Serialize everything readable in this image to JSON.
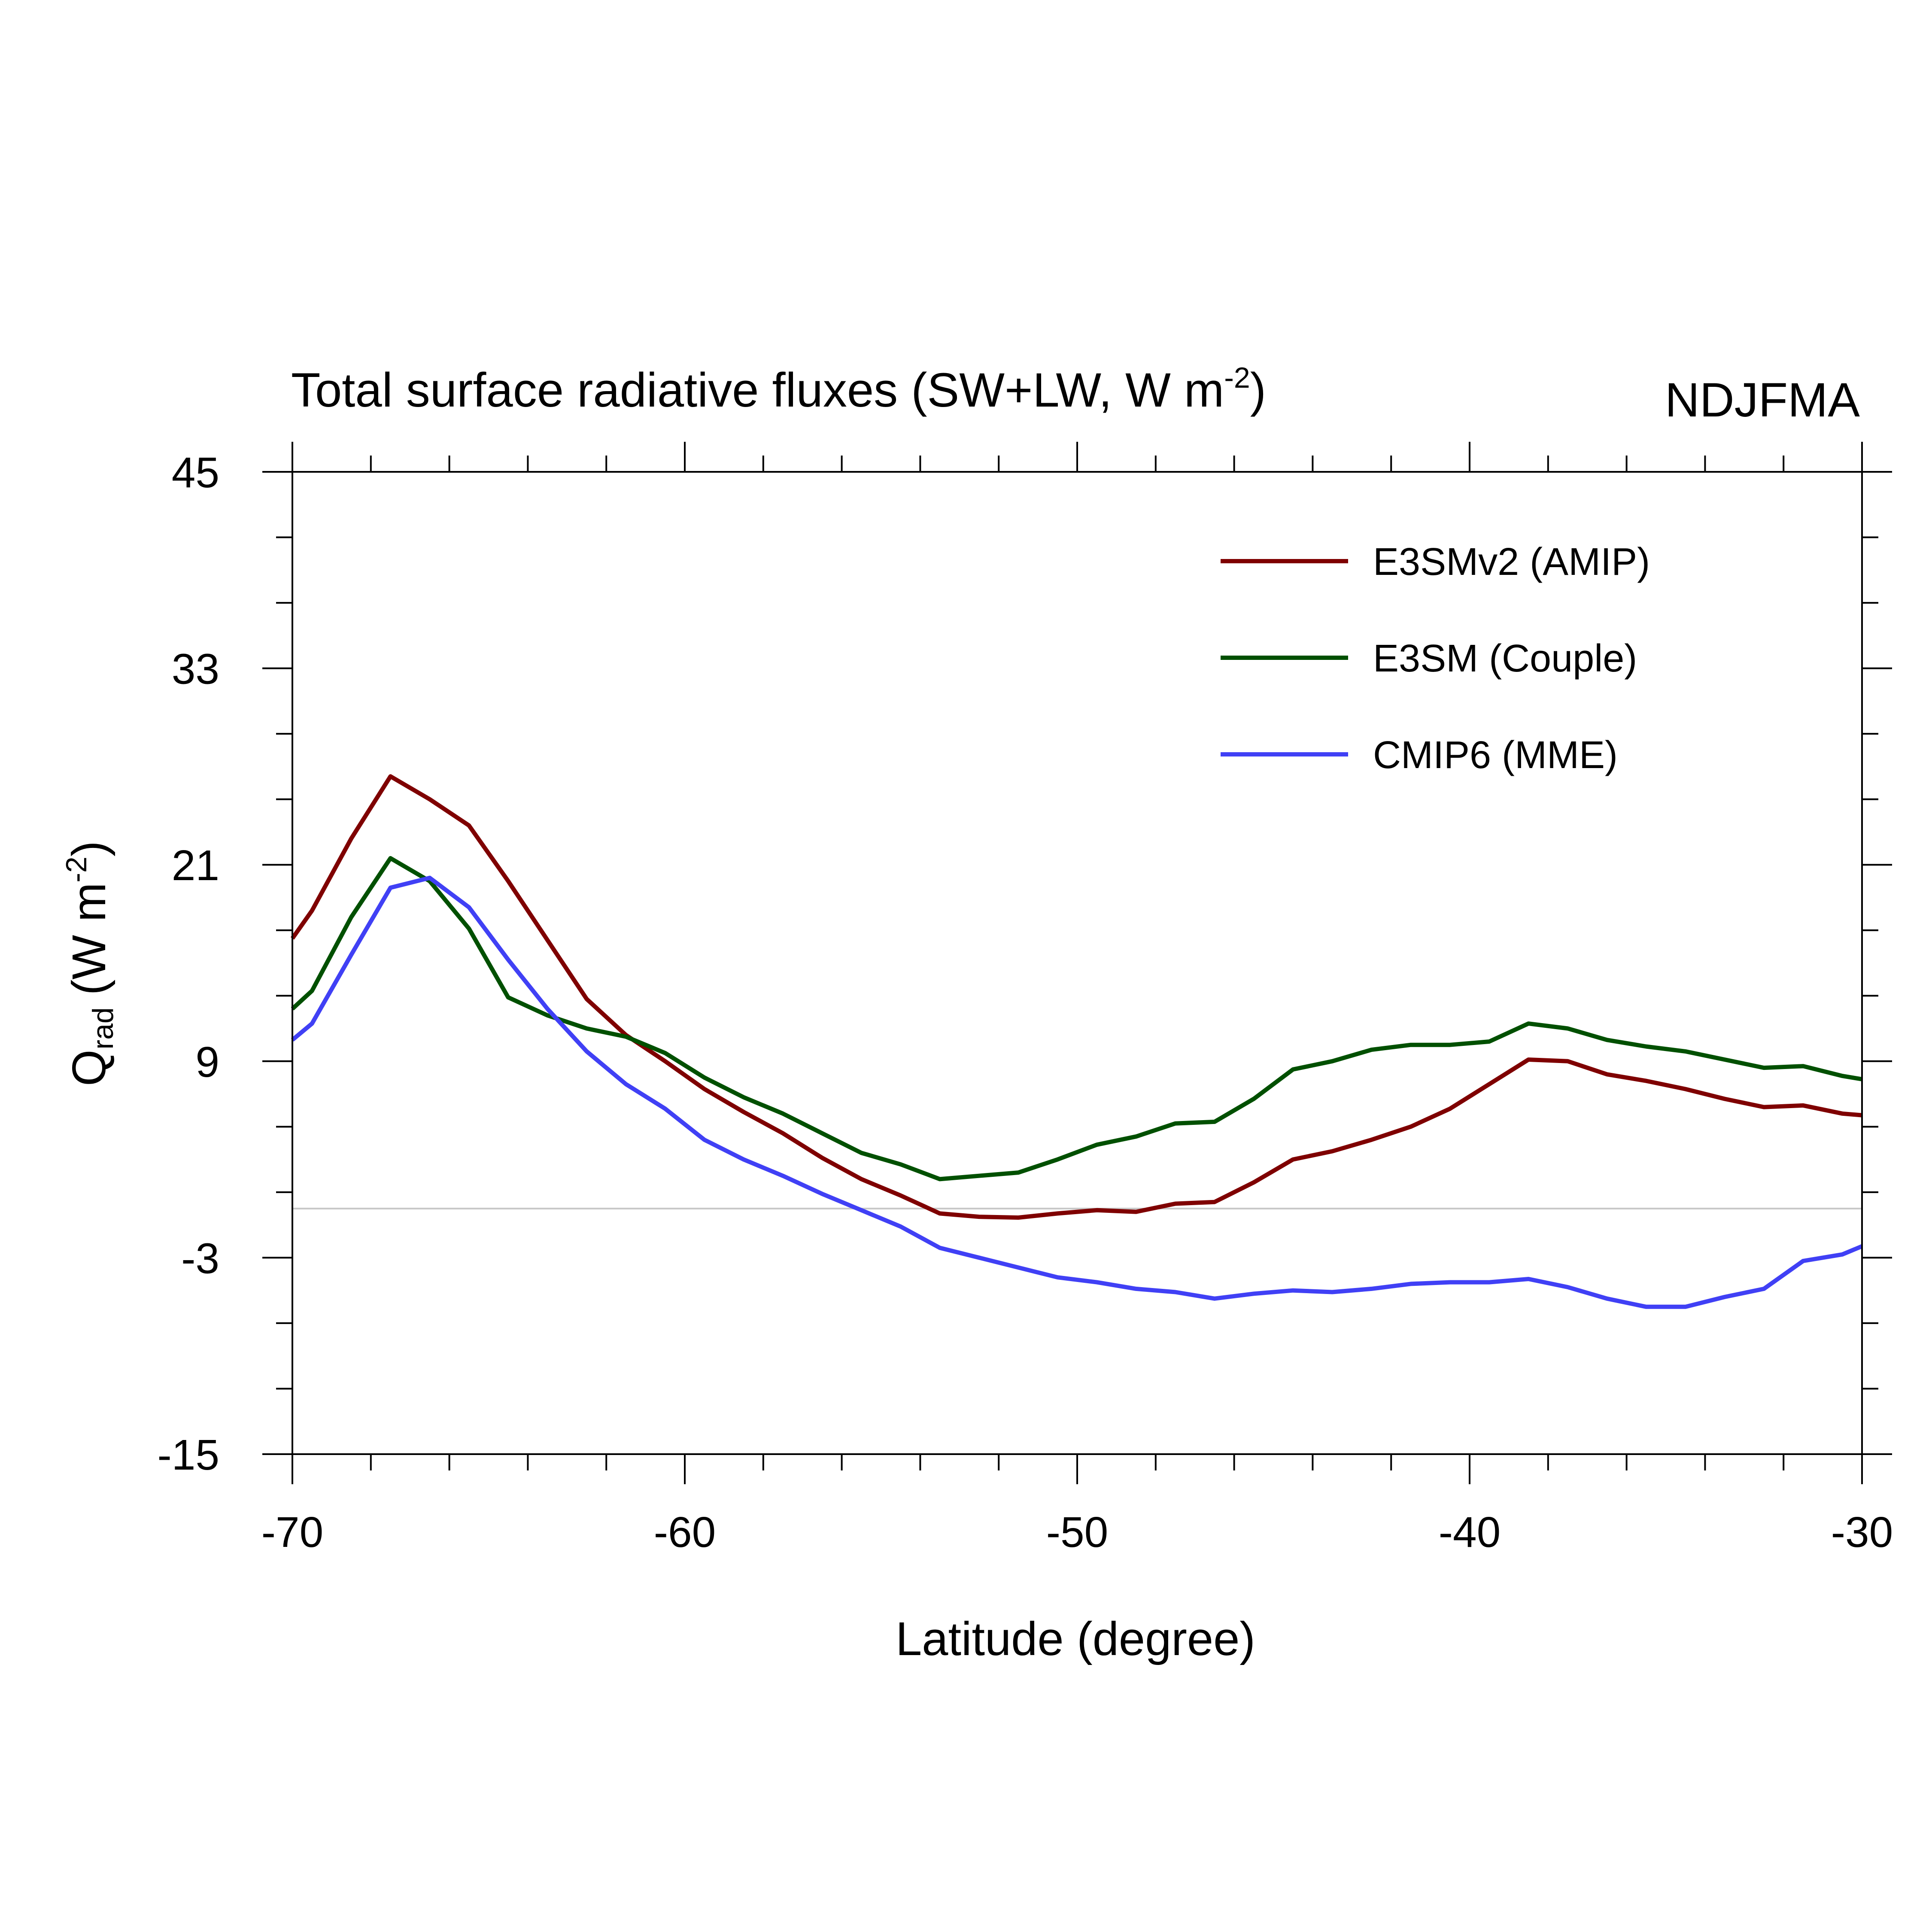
{
  "chart_data": {
    "type": "line",
    "title": {
      "text": "Total surface radiative fluxes (SW+LW, W m",
      "superscript": "-2",
      "suffix": ")"
    },
    "season_label": "NDJFMA",
    "xlabel": "Latitude (degree)",
    "ylabel": {
      "base": "Q",
      "subscript": "rad",
      "units": "(W m",
      "superscript": "-2",
      "suffix": ")"
    },
    "xlim": [
      -70,
      -30
    ],
    "ylim": [
      -15,
      45
    ],
    "x_major_ticks": [
      -70,
      -60,
      -50,
      -40,
      -30
    ],
    "x_minor_step": 2,
    "y_major_ticks": [
      45,
      33,
      21,
      9,
      -3,
      -15
    ],
    "y_minor_step": 4,
    "x_tick_labels": [
      "-70",
      "-60",
      "-50",
      "-40",
      "-30"
    ],
    "y_tick_labels": [
      "45",
      "33",
      "21",
      "9",
      "-3",
      "-15"
    ],
    "reference_line": {
      "y": 0,
      "color": "#c8c8c8"
    },
    "legend_position": "top-right",
    "x": [
      -70,
      -69.5,
      -68.5,
      -67.5,
      -66.5,
      -65.5,
      -64.5,
      -63.5,
      -62.5,
      -61.5,
      -60.5,
      -59.5,
      -58.5,
      -57.5,
      -56.5,
      -55.5,
      -54.5,
      -53.5,
      -52.5,
      -51.5,
      -50.5,
      -49.5,
      -48.5,
      -47.5,
      -46.5,
      -45.5,
      -44.5,
      -43.5,
      -42.5,
      -41.5,
      -40.5,
      -39.5,
      -38.5,
      -37.5,
      -36.5,
      -35.5,
      -34.5,
      -33.5,
      -32.5,
      -31.5,
      -30.5,
      -30
    ],
    "series": [
      {
        "name": "E3SMv2 (AMIP)",
        "color": "#7f0000",
        "values": [
          16.5,
          18.2,
          22.6,
          26.4,
          25.0,
          23.4,
          20.0,
          16.4,
          12.8,
          10.6,
          9.0,
          7.3,
          5.9,
          4.6,
          3.1,
          1.8,
          0.8,
          -0.3,
          -0.5,
          -0.55,
          -0.3,
          -0.1,
          -0.2,
          0.3,
          0.4,
          1.6,
          3.0,
          3.5,
          4.2,
          5.0,
          6.1,
          7.6,
          9.1,
          9.0,
          8.2,
          7.8,
          7.3,
          6.7,
          6.2,
          6.3,
          5.8,
          5.7
        ]
      },
      {
        "name": "E3SM (Couple)",
        "color": "#005000",
        "values": [
          12.2,
          13.3,
          17.8,
          21.4,
          20.0,
          17.1,
          12.9,
          11.8,
          11.0,
          10.5,
          9.5,
          8.0,
          6.8,
          5.8,
          4.6,
          3.4,
          2.7,
          1.8,
          2.0,
          2.2,
          3.0,
          3.9,
          4.4,
          5.2,
          5.3,
          6.7,
          8.5,
          9.0,
          9.7,
          10.0,
          10.0,
          10.2,
          11.3,
          11.0,
          10.3,
          9.9,
          9.6,
          9.1,
          8.6,
          8.7,
          8.1,
          7.9
        ]
      },
      {
        "name": "CMIP6 (MME)",
        "color": "#4040f5",
        "values": [
          10.3,
          11.3,
          15.5,
          19.6,
          20.2,
          18.4,
          15.2,
          12.2,
          9.6,
          7.6,
          6.1,
          4.2,
          3.0,
          2.0,
          0.9,
          -0.1,
          -1.1,
          -2.4,
          -3.0,
          -3.6,
          -4.2,
          -4.5,
          -4.9,
          -5.1,
          -5.5,
          -5.2,
          -5.0,
          -5.1,
          -4.9,
          -4.6,
          -4.5,
          -4.5,
          -4.3,
          -4.8,
          -5.5,
          -6.0,
          -6.0,
          -5.4,
          -4.9,
          -3.2,
          -2.8,
          -2.3
        ]
      }
    ]
  }
}
